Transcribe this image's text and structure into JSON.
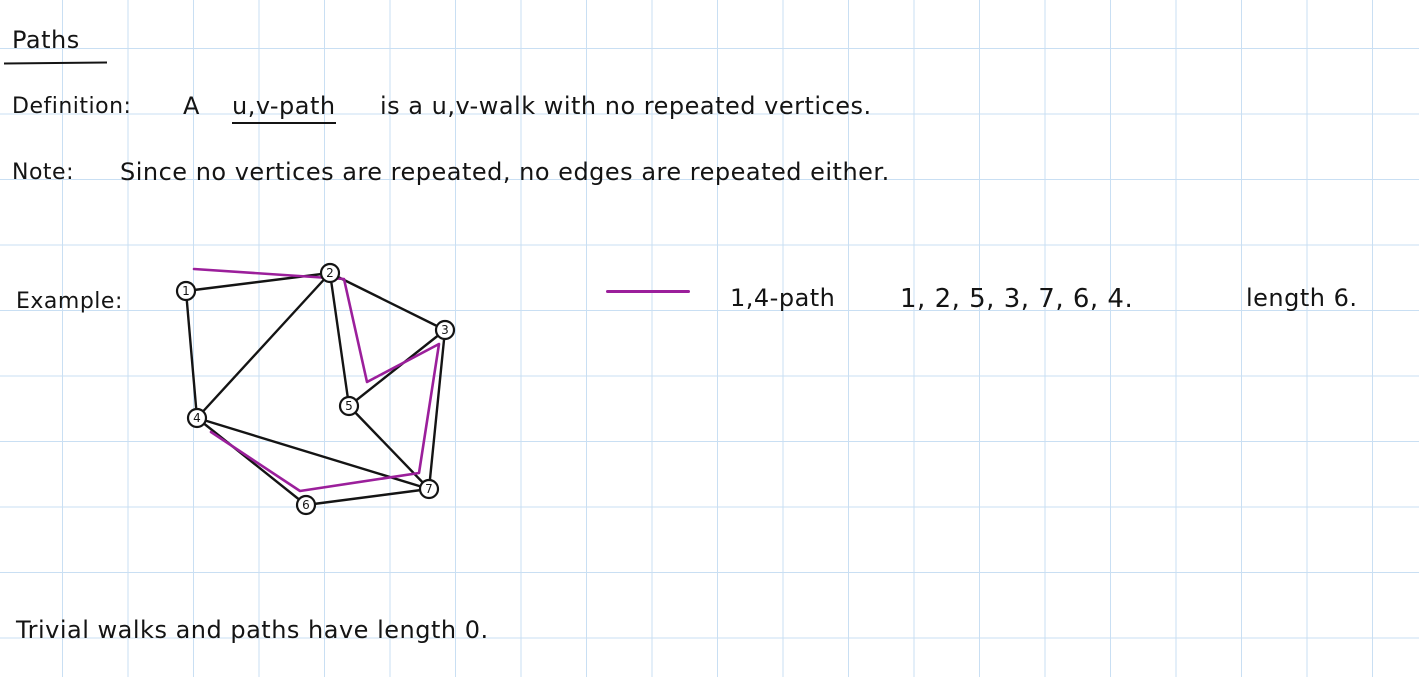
{
  "title": "Paths",
  "definition": {
    "label": "Definition:",
    "pre": "A",
    "term": "u,v-path",
    "rest": "is a u,v-walk with no repeated vertices."
  },
  "note": {
    "label": "Note:",
    "text": "Since no vertices are repeated, no edges are repeated either."
  },
  "example": {
    "label": "Example:",
    "legend": {
      "path_name": "1,4-path",
      "sequence": "1, 2, 5, 3, 7, 6, 4.",
      "length_text": "length 6.",
      "path_color": "#9b1f9b"
    },
    "graph": {
      "vertices": [
        "1",
        "2",
        "3",
        "4",
        "5",
        "6",
        "7"
      ],
      "edges": [
        [
          "1",
          "2"
        ],
        [
          "1",
          "4"
        ],
        [
          "2",
          "4"
        ],
        [
          "2",
          "3"
        ],
        [
          "2",
          "5"
        ],
        [
          "3",
          "7"
        ],
        [
          "4",
          "7"
        ],
        [
          "4",
          "6"
        ],
        [
          "7",
          "6"
        ],
        [
          "7",
          "5"
        ],
        [
          "5",
          "3"
        ]
      ],
      "highlighted_path": [
        "1",
        "2",
        "5",
        "3",
        "7",
        "6",
        "4"
      ]
    }
  },
  "footer": "Trivial walks and paths have length 0."
}
